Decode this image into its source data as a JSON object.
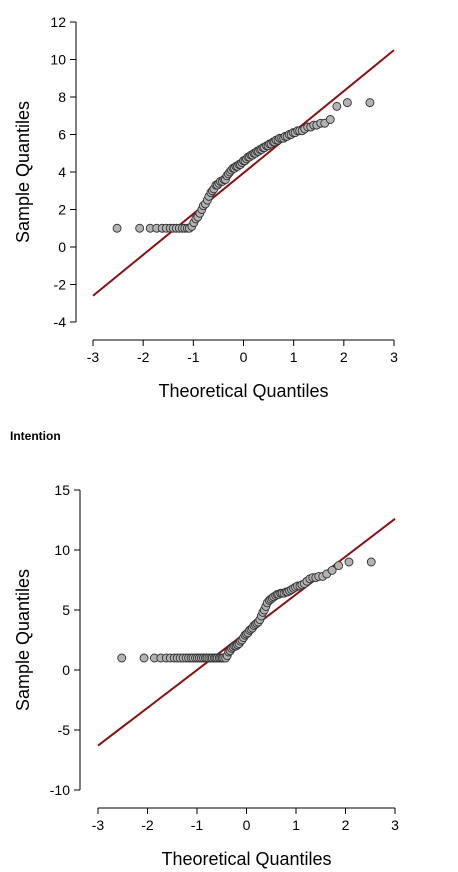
{
  "caption": "Intention",
  "colors": {
    "ref_line": "#8b1010",
    "point_fill": "#b3b3b3",
    "point_stroke": "#333333",
    "axis": "#000000"
  },
  "chart_data": [
    {
      "type": "scatter",
      "title": "",
      "xlabel": "Theoretical Quantiles",
      "ylabel": "Sample Quantiles",
      "xlim": [
        -3,
        3
      ],
      "ylim": [
        -4,
        12
      ],
      "xticks": [
        -3,
        -2,
        -1,
        0,
        1,
        2,
        3
      ],
      "yticks": [
        -4,
        -2,
        0,
        2,
        4,
        6,
        8,
        10,
        12
      ],
      "grid": false,
      "reference_line": {
        "x": [
          -3,
          3
        ],
        "y": [
          -2.6,
          10.5
        ]
      },
      "points": {
        "x": [
          -2.52,
          -2.07,
          -1.86,
          -1.73,
          -1.62,
          -1.54,
          -1.46,
          -1.4,
          -1.34,
          -1.28,
          -1.22,
          -1.17,
          -1.12,
          -1.08,
          -1.03,
          -0.99,
          -0.95,
          -0.91,
          -0.87,
          -0.83,
          -0.8,
          -0.76,
          -0.72,
          -0.69,
          -0.65,
          -0.62,
          -0.59,
          -0.55,
          -0.52,
          -0.49,
          -0.46,
          -0.42,
          -0.39,
          -0.36,
          -0.33,
          -0.3,
          -0.27,
          -0.24,
          -0.21,
          -0.18,
          -0.15,
          -0.12,
          -0.09,
          -0.06,
          -0.03,
          0.0,
          0.03,
          0.06,
          0.09,
          0.12,
          0.15,
          0.18,
          0.21,
          0.24,
          0.27,
          0.3,
          0.33,
          0.36,
          0.39,
          0.42,
          0.46,
          0.49,
          0.52,
          0.55,
          0.59,
          0.62,
          0.65,
          0.69,
          0.72,
          0.76,
          0.8,
          0.83,
          0.87,
          0.91,
          0.95,
          0.99,
          1.03,
          1.08,
          1.12,
          1.17,
          1.22,
          1.28,
          1.34,
          1.4,
          1.46,
          1.54,
          1.62,
          1.73,
          1.86,
          2.07,
          2.52
        ],
        "y": [
          1.0,
          1.0,
          1.0,
          1.0,
          1.0,
          1.0,
          1.0,
          1.0,
          1.0,
          1.0,
          1.0,
          1.0,
          1.0,
          1.0,
          1.1,
          1.3,
          1.5,
          1.6,
          1.8,
          2.0,
          2.2,
          2.3,
          2.5,
          2.7,
          2.9,
          3.0,
          3.1,
          3.3,
          3.3,
          3.4,
          3.5,
          3.5,
          3.6,
          3.6,
          3.8,
          3.9,
          4.0,
          4.1,
          4.2,
          4.2,
          4.3,
          4.3,
          4.4,
          4.4,
          4.5,
          4.6,
          4.6,
          4.7,
          4.8,
          4.8,
          4.9,
          4.9,
          5.0,
          5.0,
          5.1,
          5.1,
          5.2,
          5.2,
          5.3,
          5.3,
          5.4,
          5.4,
          5.5,
          5.5,
          5.6,
          5.6,
          5.7,
          5.7,
          5.8,
          5.8,
          5.8,
          5.9,
          5.9,
          6.0,
          6.0,
          6.1,
          6.1,
          6.2,
          6.2,
          6.2,
          6.3,
          6.4,
          6.4,
          6.5,
          6.5,
          6.6,
          6.6,
          6.8,
          7.5,
          7.7,
          7.7
        ]
      }
    },
    {
      "type": "scatter",
      "title": "",
      "xlabel": "Theoretical Quantiles",
      "ylabel": "Sample Quantiles",
      "xlim": [
        -3,
        3
      ],
      "ylim": [
        -10,
        15
      ],
      "xticks": [
        -3,
        -2,
        -1,
        0,
        1,
        2,
        3
      ],
      "yticks": [
        -10,
        -5,
        0,
        5,
        10,
        15
      ],
      "grid": false,
      "reference_line": {
        "x": [
          -3,
          3
        ],
        "y": [
          -6.3,
          12.6
        ]
      },
      "points": {
        "x": [
          -2.52,
          -2.07,
          -1.86,
          -1.73,
          -1.62,
          -1.54,
          -1.46,
          -1.4,
          -1.34,
          -1.28,
          -1.22,
          -1.17,
          -1.12,
          -1.08,
          -1.03,
          -0.99,
          -0.95,
          -0.91,
          -0.87,
          -0.83,
          -0.8,
          -0.76,
          -0.72,
          -0.69,
          -0.65,
          -0.62,
          -0.59,
          -0.55,
          -0.52,
          -0.49,
          -0.46,
          -0.42,
          -0.39,
          -0.36,
          -0.33,
          -0.3,
          -0.27,
          -0.24,
          -0.21,
          -0.18,
          -0.15,
          -0.12,
          -0.09,
          -0.06,
          -0.03,
          0.0,
          0.03,
          0.06,
          0.09,
          0.12,
          0.15,
          0.18,
          0.21,
          0.24,
          0.27,
          0.3,
          0.33,
          0.36,
          0.39,
          0.42,
          0.46,
          0.49,
          0.52,
          0.55,
          0.59,
          0.62,
          0.65,
          0.69,
          0.72,
          0.76,
          0.8,
          0.83,
          0.87,
          0.91,
          0.95,
          0.99,
          1.03,
          1.08,
          1.12,
          1.17,
          1.22,
          1.28,
          1.34,
          1.4,
          1.46,
          1.54,
          1.62,
          1.73,
          1.86,
          2.07,
          2.52
        ],
        "y": [
          1.0,
          1.0,
          1.0,
          1.0,
          1.0,
          1.0,
          1.0,
          1.0,
          1.0,
          1.0,
          1.0,
          1.0,
          1.0,
          1.0,
          1.0,
          1.0,
          1.0,
          1.0,
          1.0,
          1.0,
          1.0,
          1.0,
          1.0,
          1.0,
          1.0,
          1.0,
          1.0,
          1.0,
          1.0,
          1.0,
          1.0,
          1.0,
          1.2,
          1.5,
          1.6,
          1.8,
          1.9,
          2.0,
          2.0,
          2.1,
          2.2,
          2.4,
          2.5,
          2.7,
          2.9,
          3.0,
          3.1,
          3.3,
          3.4,
          3.5,
          3.7,
          3.8,
          3.9,
          4.0,
          4.2,
          4.5,
          4.8,
          5.0,
          5.3,
          5.6,
          5.8,
          5.9,
          6.0,
          6.1,
          6.2,
          6.3,
          6.3,
          6.4,
          6.4,
          6.4,
          6.5,
          6.5,
          6.6,
          6.7,
          6.8,
          6.9,
          7.0,
          7.0,
          7.1,
          7.2,
          7.4,
          7.6,
          7.7,
          7.7,
          7.8,
          7.8,
          8.0,
          8.3,
          8.7,
          9.0,
          9.0
        ]
      }
    }
  ]
}
